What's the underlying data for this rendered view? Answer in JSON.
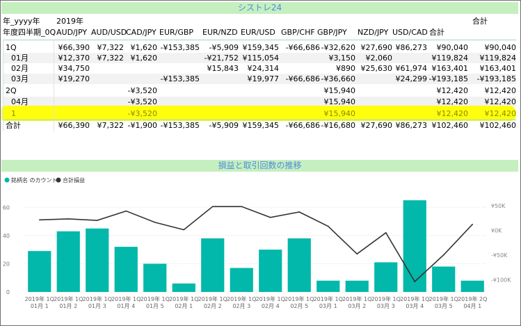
{
  "table": {
    "title": "シストレ24",
    "header1": [
      "年_yyyy年",
      "2019年",
      "",
      "",
      "",
      "",
      "",
      "",
      "",
      "",
      "",
      "",
      "合計"
    ],
    "header2": [
      "年度四半期_0Q",
      "AUD/JPY",
      "AUD/USD",
      "CAD/JPY",
      "EUR/GBP",
      "EUR/NZD",
      "EUR/USD",
      "GBP/CHF",
      "GBP/JPY",
      "NZD/JPY",
      "USD/CAD",
      "合計",
      ""
    ],
    "rows": [
      {
        "label": "1Q",
        "level": 0,
        "cells": [
          "¥66,390",
          "¥7,322",
          "¥1,620",
          "-¥153,385",
          "-¥5,909",
          "¥159,345",
          "-¥66,686",
          "-¥32,620",
          "¥27,690",
          "¥86,273",
          "¥90,040",
          "¥90,040"
        ]
      },
      {
        "label": "01月",
        "level": 1,
        "cells": [
          "¥12,370",
          "¥7,322",
          "¥1,620",
          "",
          "-¥21,752",
          "¥115,054",
          "",
          "¥3,150",
          "¥2,060",
          "",
          "¥119,824",
          "¥119,824"
        ]
      },
      {
        "label": "02月",
        "level": 1,
        "cells": [
          "¥34,750",
          "",
          "",
          "",
          "¥15,843",
          "¥24,314",
          "",
          "¥890",
          "¥25,630",
          "¥61,974",
          "¥163,401",
          "¥163,401"
        ]
      },
      {
        "label": "03月",
        "level": 1,
        "cells": [
          "¥19,270",
          "",
          "",
          "-¥153,385",
          "",
          "¥19,977",
          "-¥66,686",
          "-¥36,660",
          "",
          "¥24,299",
          "-¥193,185",
          "-¥193,185"
        ]
      },
      {
        "label": "2Q",
        "level": 0,
        "cells": [
          "",
          "",
          "-¥3,520",
          "",
          "",
          "",
          "",
          "¥15,940",
          "",
          "",
          "¥12,420",
          "¥12,420"
        ]
      },
      {
        "label": "04月",
        "level": 1,
        "cells": [
          "",
          "",
          "-¥3,520",
          "",
          "",
          "",
          "",
          "¥15,940",
          "",
          "",
          "¥12,420",
          "¥12,420"
        ]
      },
      {
        "label": "1",
        "level": 1,
        "cells": [
          "",
          "",
          "-¥3,520",
          "",
          "",
          "",
          "",
          "¥15,940",
          "",
          "",
          "¥12,420",
          "¥12,420"
        ]
      },
      {
        "label": "合計",
        "level": 0,
        "cells": [
          "¥66,390",
          "¥7,322",
          "-¥1,900",
          "-¥153,385",
          "-¥5,909",
          "¥159,345",
          "-¥66,686",
          "-¥16,680",
          "¥27,690",
          "¥86,273",
          "¥102,460",
          "¥102,460"
        ]
      }
    ],
    "highlight_color": "#ffff00"
  },
  "chart_data": {
    "type": "bar",
    "title": "損益と取引回数の推移",
    "legend_position": "top-left",
    "categories": [
      [
        "2019年 1Q",
        "01月 1"
      ],
      [
        "2019年 1Q",
        "01月 2"
      ],
      [
        "2019年 1Q",
        "01月 3"
      ],
      [
        "2019年 1Q",
        "01月 4"
      ],
      [
        "2019年 1Q",
        "01月 5"
      ],
      [
        "2019年 1Q",
        "02月 1"
      ],
      [
        "2019年 1Q",
        "02月 2"
      ],
      [
        "2019年 1Q",
        "02月 3"
      ],
      [
        "2019年 1Q",
        "02月 4"
      ],
      [
        "2019年 1Q",
        "02月 5"
      ],
      [
        "2019年 1Q",
        "03月 1"
      ],
      [
        "2019年 1Q",
        "03月 2"
      ],
      [
        "2019年 1Q",
        "03月 3"
      ],
      [
        "2019年 1Q",
        "03月 4"
      ],
      [
        "2019年 1Q",
        "03月 5"
      ],
      [
        "2019年 2Q",
        "04月 1"
      ]
    ],
    "series": [
      {
        "name": "銘柄名 のカウント",
        "type": "bar",
        "axis": "left",
        "color": "#01b8aa",
        "values": [
          29,
          43,
          45,
          32,
          20,
          6,
          38,
          17,
          30,
          38,
          8,
          8,
          21,
          65,
          18,
          8
        ]
      },
      {
        "name": "合計損益",
        "type": "line",
        "axis": "right",
        "color": "#333333",
        "values": [
          21000,
          23000,
          20000,
          39000,
          16000,
          1000,
          48000,
          48000,
          26000,
          37000,
          8000,
          -48000,
          -5000,
          -104000,
          -50000,
          12000
        ]
      }
    ],
    "y_left": {
      "ticks": [
        0,
        20,
        40,
        60
      ],
      "range": [
        0,
        70
      ]
    },
    "y_right": {
      "ticks": [
        "¥50K",
        "¥0K",
        "-¥50K",
        "-¥100K"
      ],
      "tick_values": [
        50000,
        0,
        -50000,
        -100000
      ],
      "range": [
        -125000,
        75000
      ]
    }
  }
}
